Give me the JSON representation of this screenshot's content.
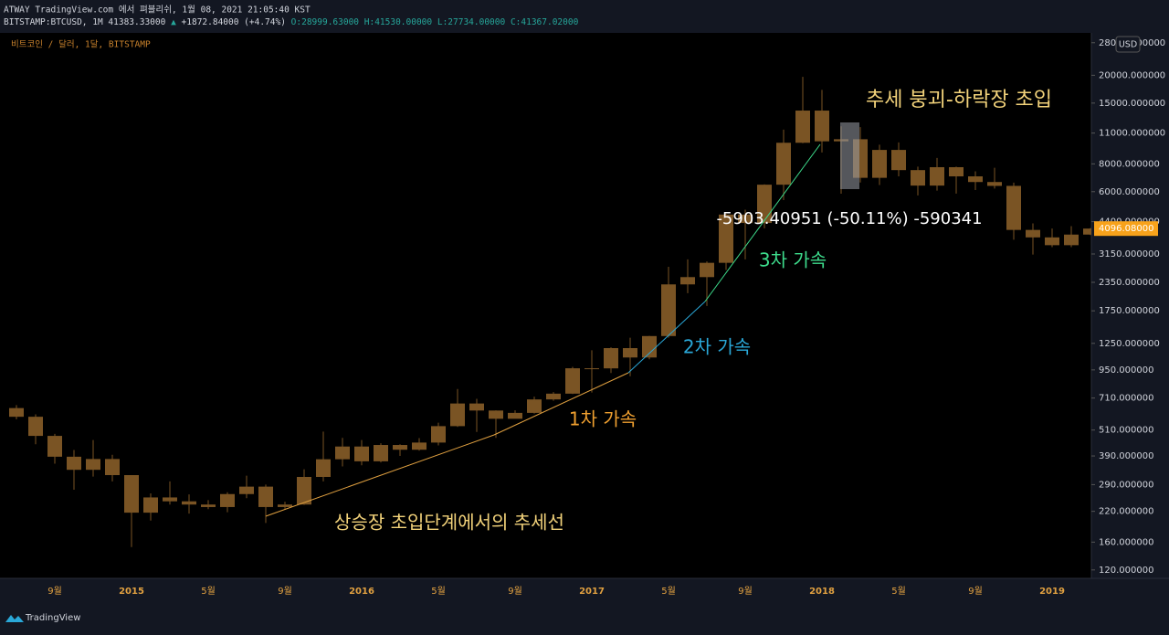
{
  "header": {
    "publish": "ATWAY TradingView.com 에서 펴블리쉬, 1월 08, 2021 21:05:40 KST",
    "symbol": "BITSTAMP:BTCUSD, 1M",
    "price": "41383.33000",
    "change": "+1872.84000 (+4.74%)",
    "o": "O:28999.63000",
    "h": "H:41530.00000",
    "l": "L:27734.00000",
    "c": "C:41367.02000"
  },
  "chart_data": {
    "type": "candlestick",
    "title": "비트코인 / 달러, 1달, BITSTAMP",
    "currency": "USD",
    "log_scale": true,
    "grid": false,
    "color": "#7a5424",
    "categories": [
      null,
      null,
      "9월",
      null,
      null,
      null,
      "2015",
      null,
      null,
      null,
      "5월",
      null,
      null,
      null,
      "9월",
      null,
      null,
      null,
      "2016",
      null,
      null,
      null,
      "5월",
      null,
      null,
      null,
      "9월",
      null,
      null,
      null,
      "2017",
      null,
      null,
      null,
      "5월",
      null,
      null,
      null,
      "9월",
      null,
      null,
      null,
      "2018",
      null,
      null,
      null,
      "5월",
      null,
      null,
      null,
      "9월",
      null,
      null,
      null,
      "2019",
      null,
      null
    ],
    "open": [
      640,
      585,
      480,
      387,
      338,
      378,
      320,
      217,
      254,
      244,
      236,
      230,
      263,
      284,
      230,
      236,
      314,
      377,
      430,
      369,
      437,
      416,
      448,
      531,
      671,
      624,
      573,
      609,
      700,
      743,
      966,
      965,
      1190,
      1080,
      1348,
      2300,
      2480,
      2875,
      4735,
      4340,
      6450,
      9950,
      13880,
      10100,
      10320,
      6925,
      9240,
      7500,
      6390,
      7730,
      7030,
      6630,
      6370,
      4040,
      3740,
      3450,
      3850
    ],
    "high": [
      660,
      600,
      490,
      415,
      460,
      395,
      320,
      265,
      300,
      262,
      247,
      268,
      318,
      290,
      243,
      340,
      502,
      470,
      460,
      445,
      440,
      469,
      550,
      780,
      704,
      625,
      625,
      720,
      755,
      980,
      1163,
      1200,
      1325,
      1350,
      2760,
      2980,
      2916,
      4780,
      4980,
      6470,
      11400,
      19666,
      17200,
      11800,
      11700,
      9750,
      9990,
      7770,
      8500,
      7770,
      7410,
      7680,
      6590,
      4320,
      4100,
      4200,
      4120
    ],
    "low": [
      570,
      440,
      360,
      275,
      315,
      300,
      152,
      200,
      236,
      215,
      225,
      218,
      252,
      195,
      225,
      235,
      300,
      350,
      354,
      365,
      390,
      412,
      435,
      527,
      500,
      470,
      575,
      605,
      690,
      740,
      752,
      920,
      890,
      1060,
      1325,
      2100,
      1840,
      2670,
      2980,
      4110,
      5500,
      9900,
      9000,
      5873,
      6600,
      6430,
      7030,
      5770,
      6070,
      5880,
      6100,
      6200,
      3650,
      3130,
      3380,
      3380,
      3830
    ],
    "close": [
      585,
      480,
      387,
      338,
      378,
      320,
      217,
      254,
      244,
      236,
      230,
      263,
      284,
      230,
      236,
      314,
      377,
      430,
      369,
      437,
      416,
      448,
      531,
      671,
      624,
      573,
      609,
      700,
      743,
      966,
      965,
      1190,
      1080,
      1348,
      2300,
      2480,
      2875,
      4735,
      4340,
      6450,
      9950,
      13880,
      10100,
      10320,
      6925,
      9240,
      7500,
      6390,
      7730,
      7030,
      6630,
      6370,
      4040,
      3740,
      3450,
      3850,
      4096
    ],
    "ylim": [
      110,
      31000
    ],
    "yticks": [
      {
        "value": 28000,
        "label": "28000.000000"
      },
      {
        "value": 20000,
        "label": "20000.000000"
      },
      {
        "value": 15000,
        "label": "15000.000000"
      },
      {
        "value": 11000,
        "label": "11000.000000"
      },
      {
        "value": 8000,
        "label": "8000.000000"
      },
      {
        "value": 6000,
        "label": "6000.000000"
      },
      {
        "value": 4400,
        "label": "4400.000000"
      },
      {
        "value": 3150,
        "label": "3150.000000"
      },
      {
        "value": 2350,
        "label": "2350.000000"
      },
      {
        "value": 1750,
        "label": "1750.000000"
      },
      {
        "value": 1250,
        "label": "1250.000000"
      },
      {
        "value": 950,
        "label": "950.000000"
      },
      {
        "value": 710,
        "label": "710.000000"
      },
      {
        "value": 510,
        "label": "510.000000"
      },
      {
        "value": 390,
        "label": "390.000000"
      },
      {
        "value": 290,
        "label": "290.000000"
      },
      {
        "value": 220,
        "label": "220.000000"
      },
      {
        "value": 160,
        "label": "160.000000"
      },
      {
        "value": 120,
        "label": "120.000000"
      }
    ],
    "last_price": {
      "value": 4096.08,
      "label": "4096.08000"
    },
    "annotations": [
      "추세 붕괴-하락장 초입",
      "-5903.40951 (-50.11%) -590341",
      "3차 가속",
      "2차 가속",
      "1차 가속",
      "상승장 초입단계에서의 추세선"
    ]
  },
  "footer": {
    "brand": "TradingView"
  }
}
